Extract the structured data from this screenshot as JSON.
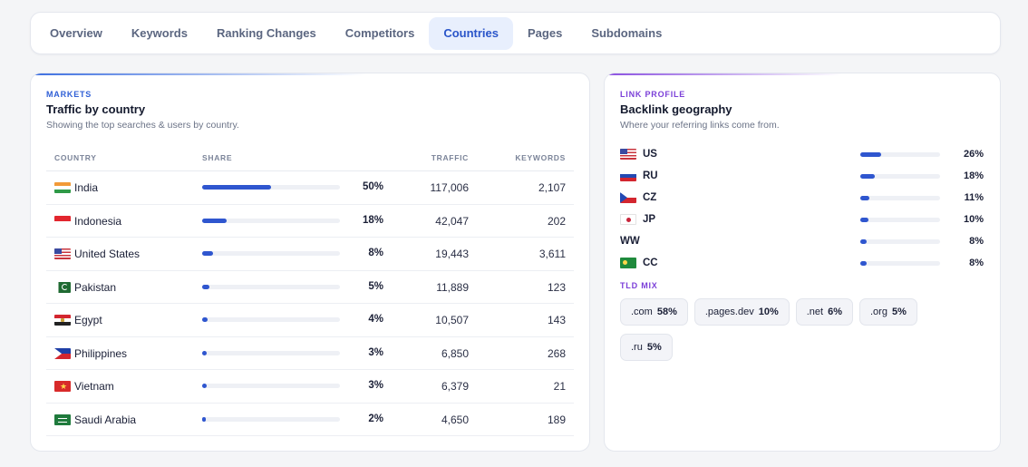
{
  "tabs": [
    {
      "label": "Overview",
      "active": false
    },
    {
      "label": "Keywords",
      "active": false
    },
    {
      "label": "Ranking Changes",
      "active": false
    },
    {
      "label": "Competitors",
      "active": false
    },
    {
      "label": "Countries",
      "active": true
    },
    {
      "label": "Pages",
      "active": false
    },
    {
      "label": "Subdomains",
      "active": false
    }
  ],
  "markets": {
    "eyebrow": "MARKETS",
    "title": "Traffic by country",
    "subtitle": "Showing the top searches & users by country.",
    "columns": {
      "country": "COUNTRY",
      "share": "SHARE",
      "traffic": "TRAFFIC",
      "keywords": "KEYWORDS"
    },
    "rows": [
      {
        "flag": "india-flag-icon",
        "country": "India",
        "share_pct": 50,
        "share": "50%",
        "traffic": "117,006",
        "keywords": "2,107"
      },
      {
        "flag": "indonesia-flag-icon",
        "country": "Indonesia",
        "share_pct": 18,
        "share": "18%",
        "traffic": "42,047",
        "keywords": "202"
      },
      {
        "flag": "us-flag-icon",
        "country": "United States",
        "share_pct": 8,
        "share": "8%",
        "traffic": "19,443",
        "keywords": "3,611"
      },
      {
        "flag": "pakistan-flag-icon",
        "country": "Pakistan",
        "share_pct": 5,
        "share": "5%",
        "traffic": "11,889",
        "keywords": "123"
      },
      {
        "flag": "egypt-flag-icon",
        "country": "Egypt",
        "share_pct": 4,
        "share": "4%",
        "traffic": "10,507",
        "keywords": "143"
      },
      {
        "flag": "philippines-flag-icon",
        "country": "Philippines",
        "share_pct": 3,
        "share": "3%",
        "traffic": "6,850",
        "keywords": "268"
      },
      {
        "flag": "vietnam-flag-icon",
        "country": "Vietnam",
        "share_pct": 3,
        "share": "3%",
        "traffic": "6,379",
        "keywords": "21"
      },
      {
        "flag": "saudi-arabia-flag-icon",
        "country": "Saudi Arabia",
        "share_pct": 2,
        "share": "2%",
        "traffic": "4,650",
        "keywords": "189"
      }
    ]
  },
  "link_profile": {
    "eyebrow": "LINK PROFILE",
    "title": "Backlink geography",
    "subtitle": "Where your referring links come from.",
    "rows": [
      {
        "flag": "us-flag-icon",
        "code": "US",
        "pct_value": 26,
        "pct": "26%"
      },
      {
        "flag": "russia-flag-icon",
        "code": "RU",
        "pct_value": 18,
        "pct": "18%"
      },
      {
        "flag": "czech-flag-icon",
        "code": "CZ",
        "pct_value": 11,
        "pct": "11%"
      },
      {
        "flag": "japan-flag-icon",
        "code": "JP",
        "pct_value": 10,
        "pct": "10%"
      },
      {
        "flag": "",
        "code": "WW",
        "pct_value": 8,
        "pct": "8%"
      },
      {
        "flag": "cocos-islands-flag-icon",
        "code": "CC",
        "pct_value": 8,
        "pct": "8%"
      }
    ],
    "tld_label": "TLD MIX",
    "tlds": [
      {
        "name": ".com",
        "pct": "58%"
      },
      {
        "name": ".pages.dev",
        "pct": "10%"
      },
      {
        "name": ".net",
        "pct": "6%"
      },
      {
        "name": ".org",
        "pct": "5%"
      },
      {
        "name": ".ru",
        "pct": "5%"
      }
    ]
  },
  "colors": {
    "accent": "#2f56cf",
    "active_tab_bg": "#e8effd",
    "link_accent": "#7b3fd8"
  }
}
